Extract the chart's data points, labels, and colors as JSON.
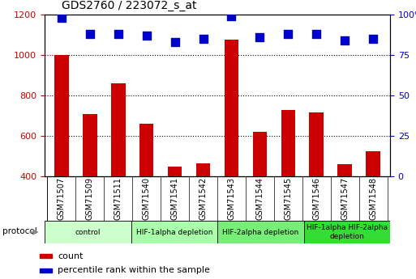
{
  "title": "GDS2760 / 223072_s_at",
  "samples": [
    "GSM71507",
    "GSM71509",
    "GSM71511",
    "GSM71540",
    "GSM71541",
    "GSM71542",
    "GSM71543",
    "GSM71544",
    "GSM71545",
    "GSM71546",
    "GSM71547",
    "GSM71548"
  ],
  "counts": [
    1000,
    710,
    860,
    660,
    450,
    465,
    1075,
    620,
    730,
    715,
    460,
    525
  ],
  "percentile_ranks": [
    98,
    88,
    88,
    87,
    83,
    85,
    99,
    86,
    88,
    88,
    84,
    85
  ],
  "ylim_left": [
    400,
    1200
  ],
  "ylim_right": [
    0,
    100
  ],
  "yticks_left": [
    400,
    600,
    800,
    1000,
    1200
  ],
  "yticks_right": [
    0,
    25,
    50,
    75,
    100
  ],
  "bar_color": "#cc0000",
  "dot_color": "#0000cc",
  "groups": [
    {
      "label": "control",
      "indices": [
        0,
        1,
        2
      ],
      "color": "#ccffcc"
    },
    {
      "label": "HIF-1alpha depletion",
      "indices": [
        3,
        4,
        5
      ],
      "color": "#aaffaa"
    },
    {
      "label": "HIF-2alpha depletion",
      "indices": [
        6,
        7,
        8
      ],
      "color": "#77ee77"
    },
    {
      "label": "HIF-1alpha HIF-2alpha\ndepletion",
      "indices": [
        9,
        10,
        11
      ],
      "color": "#33dd33"
    }
  ],
  "legend_items": [
    {
      "label": "count",
      "color": "#cc0000"
    },
    {
      "label": "percentile rank within the sample",
      "color": "#0000cc"
    }
  ],
  "bar_width": 0.5,
  "dot_size": 45,
  "grid_color": "#000000",
  "tick_color_left": "#cc0000",
  "tick_color_right": "#0000cc",
  "protocol_label": "protocol",
  "bg_color": "#e8e8e8",
  "fig_bg": "#ffffff"
}
